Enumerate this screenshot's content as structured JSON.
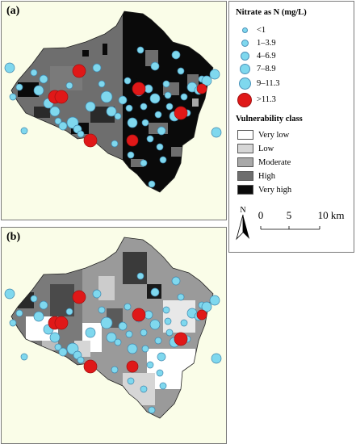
{
  "panels": {
    "a": {
      "label": "(a)"
    },
    "b": {
      "label": "(b)"
    }
  },
  "legend": {
    "nitrate_title": "Nitrate as N (mg/L)",
    "nitrate_classes": [
      "<1",
      "1–3.9",
      "4–6.9",
      "7–8.9",
      "9–11.3",
      ">11.3"
    ],
    "vulnerability_title": "Vulnerability class",
    "vulnerability_classes": [
      {
        "label": "Very low",
        "color": "#ffffff"
      },
      {
        "label": "Low",
        "color": "#d6d6d6"
      },
      {
        "label": "Moderate",
        "color": "#a8a8a8"
      },
      {
        "label": "High",
        "color": "#6e6e6e"
      },
      {
        "label": "Very high",
        "color": "#0a0a0a"
      }
    ],
    "dot_color": "#7fd8ee",
    "high_dot_color": "#e01818"
  },
  "north": {
    "label": "N"
  },
  "scale": {
    "ticks": [
      "0",
      "5",
      "10 km"
    ]
  }
}
